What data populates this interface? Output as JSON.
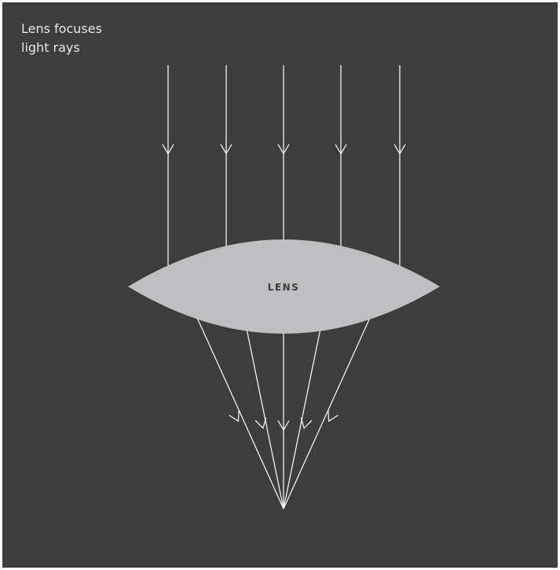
{
  "caption": {
    "lines": [
      "Lens focuses",
      "light rays"
    ]
  },
  "lens": {
    "label": "LENS"
  }
}
